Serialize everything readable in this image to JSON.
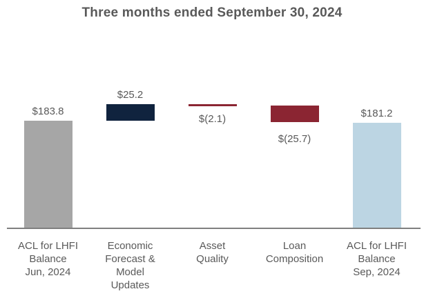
{
  "chart_data": {
    "type": "bar",
    "subtype": "waterfall",
    "title": "Three months ended September 30, 2024",
    "categories": [
      "ACL for LHFI\nBalance\nJun, 2024",
      "Economic\nForecast &\nModel\nUpdates",
      "Asset\nQuality",
      "Loan\nComposition",
      "ACL for LHFI\nBalance\nSep, 2024"
    ],
    "bars": [
      {
        "value": 183.8,
        "label": "$183.8",
        "kind": "total",
        "label_position": "above",
        "color": "#a6a6a6"
      },
      {
        "value": 25.2,
        "label": "$25.2",
        "kind": "delta",
        "label_position": "above",
        "color": "#10233e"
      },
      {
        "value": -2.1,
        "label": "$(2.1)",
        "kind": "delta",
        "label_position": "below",
        "color": "#8b2532"
      },
      {
        "value": -25.7,
        "label": "$(25.7)",
        "kind": "delta",
        "label_position": "below",
        "color": "#8b2532"
      },
      {
        "value": 181.2,
        "label": "$181.2",
        "kind": "total",
        "label_position": "above",
        "color": "#bcd5e3"
      }
    ],
    "colors": {
      "total_start": "#a6a6a6",
      "increase": "#10233e",
      "decrease": "#8b2532",
      "total_end": "#bcd5e3",
      "text": "#595959",
      "axis": "#7f7f7f"
    },
    "layout_hints": {
      "legend": "none",
      "grid": "off",
      "y_axis_ticks_visible": false,
      "baseline_axis_visible": true,
      "value_labels": "outside-end"
    }
  }
}
